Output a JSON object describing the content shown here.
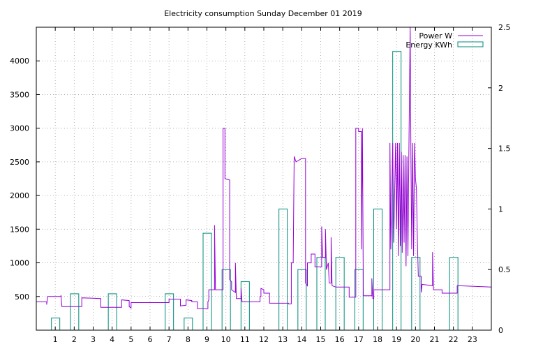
{
  "chart_data": {
    "type": "line",
    "title": "Electricity consumption Sunday December 01 2019",
    "legend_position": "top-right",
    "grid": true,
    "x_range": [
      0,
      24
    ],
    "x_ticks": [
      1,
      2,
      3,
      4,
      5,
      6,
      7,
      8,
      9,
      10,
      11,
      12,
      13,
      14,
      15,
      16,
      17,
      18,
      19,
      20,
      21,
      22,
      23
    ],
    "y_left": {
      "range": [
        0,
        4500
      ],
      "ticks": [
        500,
        1000,
        1500,
        2000,
        2500,
        3000,
        3500,
        4000
      ]
    },
    "y_right": {
      "range": [
        0,
        2.5
      ],
      "ticks": [
        0,
        0.5,
        1,
        1.5,
        2,
        2.5
      ]
    },
    "series": [
      {
        "name": "Power W",
        "type": "step-line",
        "axis": "left",
        "color": "#9400d3",
        "points": [
          [
            0,
            420
          ],
          [
            0.55,
            420
          ],
          [
            0.55,
            380
          ],
          [
            0.6,
            500
          ],
          [
            1.3,
            500
          ],
          [
            1.3,
            520
          ],
          [
            1.35,
            350
          ],
          [
            2.4,
            350
          ],
          [
            2.4,
            480
          ],
          [
            3.4,
            470
          ],
          [
            3.4,
            340
          ],
          [
            4.5,
            340
          ],
          [
            4.5,
            450
          ],
          [
            4.9,
            440
          ],
          [
            4.9,
            350
          ],
          [
            5.0,
            330
          ],
          [
            5.0,
            410
          ],
          [
            7.0,
            410
          ],
          [
            7.0,
            460
          ],
          [
            7.6,
            460
          ],
          [
            7.6,
            360
          ],
          [
            7.9,
            370
          ],
          [
            7.9,
            450
          ],
          [
            8.2,
            440
          ],
          [
            8.2,
            420
          ],
          [
            8.5,
            420
          ],
          [
            8.5,
            320
          ],
          [
            9.05,
            320
          ],
          [
            9.05,
            420
          ],
          [
            9.1,
            450
          ],
          [
            9.1,
            600
          ],
          [
            9.4,
            600
          ],
          [
            9.4,
            1560
          ],
          [
            9.45,
            600
          ],
          [
            9.85,
            600
          ],
          [
            9.85,
            3000
          ],
          [
            9.95,
            3000
          ],
          [
            9.95,
            2250
          ],
          [
            10.2,
            2230
          ],
          [
            10.2,
            750
          ],
          [
            10.3,
            720
          ],
          [
            10.3,
            600
          ],
          [
            10.5,
            560
          ],
          [
            10.5,
            1000
          ],
          [
            10.55,
            470
          ],
          [
            10.8,
            470
          ],
          [
            10.8,
            620
          ],
          [
            10.85,
            420
          ],
          [
            11.8,
            420
          ],
          [
            11.8,
            500
          ],
          [
            11.85,
            500
          ],
          [
            11.85,
            620
          ],
          [
            12.0,
            600
          ],
          [
            12.0,
            550
          ],
          [
            12.3,
            550
          ],
          [
            12.3,
            400
          ],
          [
            13.3,
            400
          ],
          [
            13.3,
            390
          ],
          [
            13.45,
            390
          ],
          [
            13.45,
            1000
          ],
          [
            13.55,
            1000
          ],
          [
            13.6,
            2580
          ],
          [
            13.7,
            2500
          ],
          [
            14.0,
            2550
          ],
          [
            14.2,
            2550
          ],
          [
            14.2,
            700
          ],
          [
            14.3,
            660
          ],
          [
            14.3,
            1000
          ],
          [
            14.5,
            1000
          ],
          [
            14.5,
            1130
          ],
          [
            14.7,
            1130
          ],
          [
            14.7,
            940
          ],
          [
            15.05,
            940
          ],
          [
            15.05,
            1540
          ],
          [
            15.1,
            1080
          ],
          [
            15.25,
            1080
          ],
          [
            15.25,
            1500
          ],
          [
            15.3,
            900
          ],
          [
            15.4,
            1000
          ],
          [
            15.45,
            700
          ],
          [
            15.55,
            700
          ],
          [
            15.55,
            1380
          ],
          [
            15.6,
            660
          ],
          [
            15.8,
            640
          ],
          [
            16.5,
            640
          ],
          [
            16.5,
            490
          ],
          [
            16.85,
            490
          ],
          [
            16.85,
            3000
          ],
          [
            17.0,
            3000
          ],
          [
            17.0,
            2950
          ],
          [
            17.15,
            2950
          ],
          [
            17.15,
            1200
          ],
          [
            17.2,
            3000
          ],
          [
            17.25,
            510
          ],
          [
            17.7,
            510
          ],
          [
            17.7,
            770
          ],
          [
            17.75,
            470
          ],
          [
            17.8,
            470
          ],
          [
            17.8,
            600
          ],
          [
            18.65,
            600
          ],
          [
            18.65,
            2780
          ],
          [
            18.7,
            1200
          ],
          [
            18.8,
            2780
          ],
          [
            18.85,
            1300
          ],
          [
            18.95,
            2780
          ],
          [
            19.0,
            1500
          ],
          [
            19.05,
            2780
          ],
          [
            19.1,
            1100
          ],
          [
            19.15,
            2780
          ],
          [
            19.2,
            1250
          ],
          [
            19.25,
            2650
          ],
          [
            19.3,
            1150
          ],
          [
            19.35,
            2600
          ],
          [
            19.4,
            1300
          ],
          [
            19.45,
            2600
          ],
          [
            19.5,
            950
          ],
          [
            19.55,
            2580
          ],
          [
            19.6,
            1100
          ],
          [
            19.65,
            2580
          ],
          [
            19.72,
            4500
          ],
          [
            19.76,
            2580
          ],
          [
            19.8,
            1200
          ],
          [
            19.85,
            2780
          ],
          [
            19.9,
            1100
          ],
          [
            19.95,
            2780
          ],
          [
            20.0,
            2250
          ],
          [
            20.05,
            2100
          ],
          [
            20.1,
            1300
          ],
          [
            20.15,
            800
          ],
          [
            20.3,
            800
          ],
          [
            20.3,
            560
          ],
          [
            20.35,
            680
          ],
          [
            20.9,
            660
          ],
          [
            20.9,
            1160
          ],
          [
            20.95,
            600
          ],
          [
            21.4,
            600
          ],
          [
            21.4,
            550
          ],
          [
            22.2,
            550
          ],
          [
            22.2,
            660
          ],
          [
            24.0,
            640
          ]
        ]
      },
      {
        "name": "Energy KWh",
        "type": "bar",
        "axis": "right",
        "color": "#008b7a",
        "bars": [
          {
            "x": 1,
            "value": 0.1
          },
          {
            "x": 2,
            "value": 0.3
          },
          {
            "x": 3,
            "value": 0
          },
          {
            "x": 4,
            "value": 0.3
          },
          {
            "x": 5,
            "value": 0
          },
          {
            "x": 6,
            "value": 0
          },
          {
            "x": 7,
            "value": 0.3
          },
          {
            "x": 8,
            "value": 0.1
          },
          {
            "x": 9,
            "value": 0.8
          },
          {
            "x": 10,
            "value": 0.5
          },
          {
            "x": 11,
            "value": 0.4
          },
          {
            "x": 12,
            "value": 0
          },
          {
            "x": 13,
            "value": 1.0
          },
          {
            "x": 14,
            "value": 0.5
          },
          {
            "x": 15,
            "value": 0.6
          },
          {
            "x": 16,
            "value": 0.6
          },
          {
            "x": 17,
            "value": 0.5
          },
          {
            "x": 18,
            "value": 1.0
          },
          {
            "x": 19,
            "value": 2.3
          },
          {
            "x": 20,
            "value": 0.6
          },
          {
            "x": 21,
            "value": 0
          },
          {
            "x": 22,
            "value": 0.6
          },
          {
            "x": 23,
            "value": 0
          }
        ]
      }
    ]
  }
}
